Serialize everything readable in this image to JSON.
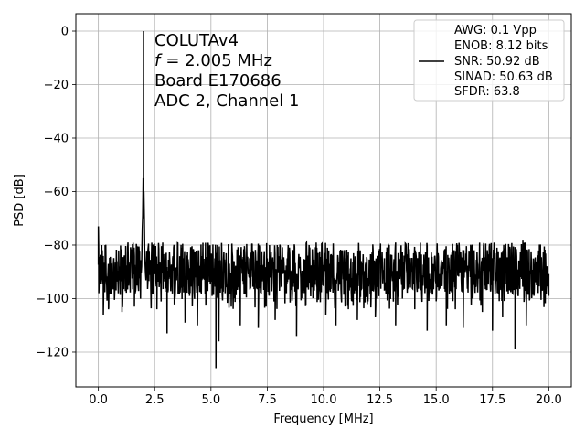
{
  "chart_data": {
    "type": "line",
    "xlabel": "Frequency [MHz]",
    "ylabel": "PSD [dB]",
    "xlim": [
      -1,
      21
    ],
    "ylim": [
      -133,
      6.5
    ],
    "xticks": [
      0.0,
      2.5,
      5.0,
      7.5,
      10.0,
      12.5,
      15.0,
      17.5,
      20.0
    ],
    "xtick_labels": [
      "0.0",
      "2.5",
      "5.0",
      "7.5",
      "10.0",
      "12.5",
      "15.0",
      "17.5",
      "20.0"
    ],
    "yticks": [
      0,
      -20,
      -40,
      -60,
      -80,
      -100,
      -120
    ],
    "ytick_labels": [
      "0",
      "−20",
      "−40",
      "−60",
      "−80",
      "−100",
      "−120"
    ],
    "grid": true,
    "annotation": {
      "lines": [
        "COLUTAv4",
        "= 2.005 MHz",
        "Board E170686",
        "ADC 2, Channel 1"
      ],
      "f_symbol": "f"
    },
    "legend": {
      "placement": "top-right",
      "lines": [
        "AWG: 0.1 Vpp",
        "ENOB: 8.12 bits",
        "SNR: 50.92 dB",
        "SINAD: 50.63 dB",
        "SFDR: 63.8"
      ]
    },
    "series": [
      {
        "color": "#000000",
        "fundamental": {
          "x": 2.005,
          "y": 0
        },
        "skirt": [
          [
            1.92,
            -88
          ],
          [
            1.95,
            -74
          ],
          [
            1.97,
            -69
          ],
          [
            1.99,
            -55
          ],
          [
            2.02,
            -60
          ],
          [
            2.04,
            -70
          ],
          [
            2.06,
            -84
          ],
          [
            2.09,
            -90
          ]
        ],
        "noise_floor": {
          "x_range": [
            0.0,
            20.0
          ],
          "mean_db": -90,
          "upper_db": -81,
          "lower_db": -100
        },
        "spikes": [
          [
            0.0,
            -73
          ],
          [
            0.02,
            -98
          ],
          [
            0.15,
            -80
          ],
          [
            0.22,
            -106
          ],
          [
            0.3,
            -80
          ],
          [
            0.45,
            -104
          ],
          [
            0.9,
            -82
          ],
          [
            1.05,
            -105
          ],
          [
            1.3,
            -81
          ],
          [
            1.6,
            -103
          ],
          [
            2.2,
            -82
          ],
          [
            2.6,
            -104
          ],
          [
            3.05,
            -113
          ],
          [
            3.4,
            -100
          ],
          [
            3.85,
            -109
          ],
          [
            4.05,
            -99
          ],
          [
            4.4,
            -110
          ],
          [
            5.05,
            -99
          ],
          [
            5.22,
            -126
          ],
          [
            5.35,
            -116
          ],
          [
            5.9,
            -103
          ],
          [
            6.3,
            -110
          ],
          [
            6.85,
            -82
          ],
          [
            7.1,
            -111
          ],
          [
            7.45,
            -103
          ],
          [
            7.85,
            -108
          ],
          [
            8.35,
            -98
          ],
          [
            8.8,
            -114
          ],
          [
            9.2,
            -102
          ],
          [
            9.7,
            -81
          ],
          [
            10.1,
            -106
          ],
          [
            10.55,
            -110
          ],
          [
            10.8,
            -82
          ],
          [
            11.1,
            -104
          ],
          [
            11.5,
            -108
          ],
          [
            11.9,
            -99
          ],
          [
            12.3,
            -107
          ],
          [
            12.7,
            -97
          ],
          [
            13.2,
            -110
          ],
          [
            13.5,
            -100
          ],
          [
            14.05,
            -104
          ],
          [
            14.3,
            -80
          ],
          [
            14.6,
            -112
          ],
          [
            15.0,
            -101
          ],
          [
            15.45,
            -110
          ],
          [
            15.85,
            -104
          ],
          [
            16.2,
            -111
          ],
          [
            16.6,
            -100
          ],
          [
            17.05,
            -105
          ],
          [
            17.5,
            -112
          ],
          [
            17.7,
            -81
          ],
          [
            17.95,
            -107
          ],
          [
            18.5,
            -119
          ],
          [
            18.55,
            -96
          ],
          [
            18.85,
            -78
          ],
          [
            19.0,
            -110
          ],
          [
            19.3,
            -98
          ],
          [
            19.55,
            -82
          ],
          [
            19.8,
            -100
          ],
          [
            20.0,
            -99
          ]
        ]
      }
    ]
  }
}
